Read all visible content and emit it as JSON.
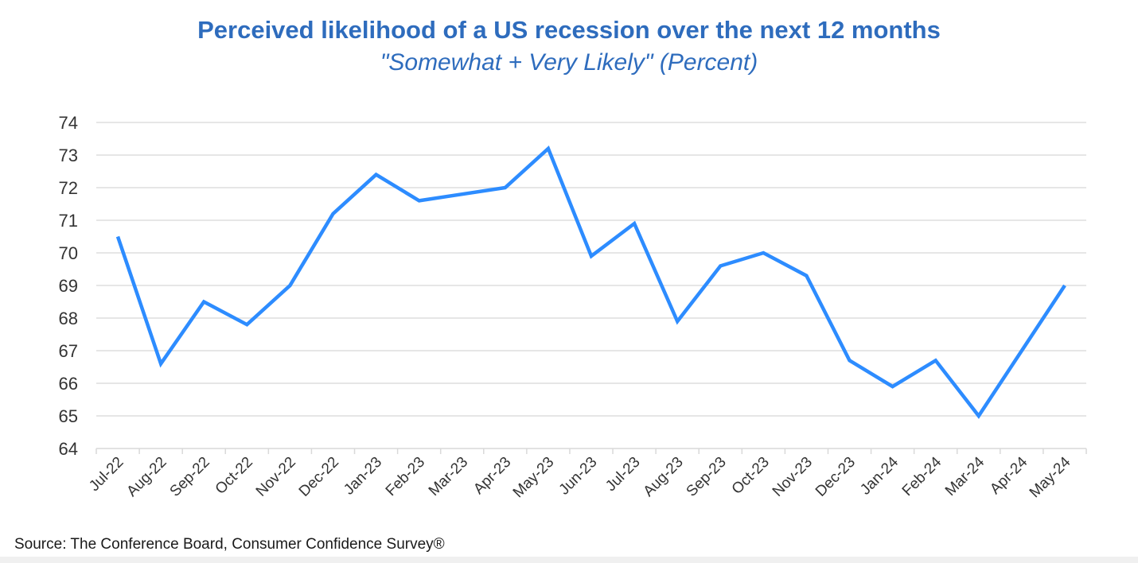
{
  "chart_data": {
    "type": "line",
    "title": "Perceived likelihood of a US recession over the next 12 months",
    "subtitle": "\"Somewhat + Very Likely\" (Percent)",
    "xlabel": "",
    "ylabel": "",
    "categories": [
      "Jul-22",
      "Aug-22",
      "Sep-22",
      "Oct-22",
      "Nov-22",
      "Dec-22",
      "Jan-23",
      "Feb-23",
      "Mar-23",
      "Apr-23",
      "May-23",
      "Jun-23",
      "Jul-23",
      "Aug-23",
      "Sep-23",
      "Oct-23",
      "Nov-23",
      "Dec-23",
      "Jan-24",
      "Feb-24",
      "Mar-24",
      "Apr-24",
      "May-24"
    ],
    "series": [
      {
        "name": "Somewhat + Very Likely",
        "color": "#2d8cff",
        "values": [
          70.5,
          66.6,
          68.5,
          67.8,
          69.0,
          71.2,
          72.4,
          71.6,
          71.8,
          72.0,
          73.2,
          69.9,
          70.9,
          67.9,
          69.6,
          70.0,
          69.3,
          66.7,
          65.9,
          66.7,
          65.0,
          67.0,
          69.0
        ]
      }
    ],
    "yticks": [
      64,
      65,
      66,
      67,
      68,
      69,
      70,
      71,
      72,
      73,
      74
    ],
    "ylim": [
      64,
      74
    ],
    "grid": true,
    "legend": "none",
    "source": "Source: The Conference Board, Consumer Confidence Survey®"
  },
  "colors": {
    "title": "#2e6cbd",
    "line": "#2d8cff",
    "grid": "#dddddd"
  }
}
